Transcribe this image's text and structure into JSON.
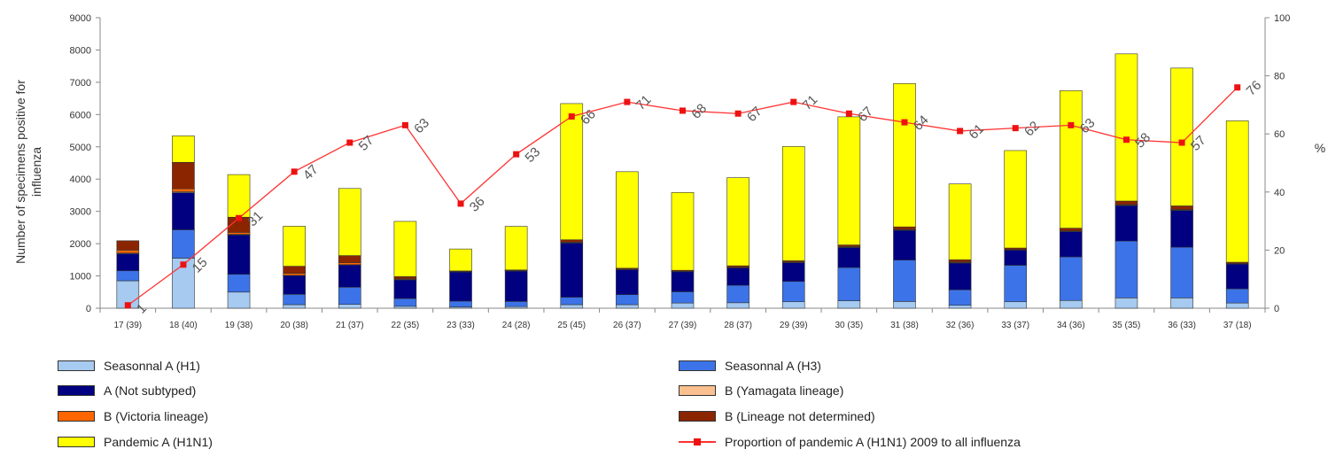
{
  "chart_data": {
    "type": "bar",
    "stacked": true,
    "title": "",
    "ylabel": "Number of specimens positive for influenza",
    "y2label": "%",
    "ylim": [
      0,
      9000
    ],
    "y2lim": [
      0,
      100
    ],
    "yticks": [
      0,
      1000,
      2000,
      3000,
      4000,
      5000,
      6000,
      7000,
      8000,
      9000
    ],
    "y2ticks": [
      0,
      20,
      40,
      60,
      80,
      100
    ],
    "grid": false,
    "legend_position": "bottom",
    "categories": [
      "17 (39)",
      "18 (40)",
      "19 (38)",
      "20 (38)",
      "21 (37)",
      "22 (35)",
      "23 (33)",
      "24 (28)",
      "25 (45)",
      "26 (37)",
      "27 (39)",
      "28 (37)",
      "29 (39)",
      "30 (35)",
      "31 (38)",
      "32 (36)",
      "33 (37)",
      "34 (36)",
      "35 (35)",
      "36 (33)",
      "37 (18)"
    ],
    "series": [
      {
        "name": "Seasonnal A (H1)",
        "color": "#a6caf0",
        "values": [
          850,
          1550,
          500,
          110,
          120,
          60,
          40,
          50,
          110,
          110,
          160,
          170,
          200,
          230,
          210,
          90,
          200,
          240,
          320,
          320,
          160
        ]
      },
      {
        "name": "Seasonnal A (H3)",
        "color": "#3c73e8",
        "values": [
          310,
          880,
          550,
          320,
          530,
          240,
          180,
          160,
          230,
          310,
          350,
          540,
          630,
          1030,
          1280,
          480,
          1130,
          1350,
          1760,
          1570,
          440
        ]
      },
      {
        "name": "A (Not subtyped)",
        "color": "#000080",
        "values": [
          530,
          1150,
          1220,
          580,
          690,
          580,
          900,
          940,
          1680,
          770,
          620,
          540,
          580,
          620,
          920,
          830,
          470,
          780,
          1100,
          1140,
          770
        ]
      },
      {
        "name": "B (Yamagata lineage)",
        "color": "#fac090",
        "values": [
          20,
          30,
          20,
          10,
          10,
          10,
          5,
          5,
          10,
          10,
          5,
          5,
          10,
          10,
          10,
          10,
          5,
          10,
          10,
          10,
          5
        ]
      },
      {
        "name": "B (Victoria lineage)",
        "color": "#ff6600",
        "values": [
          90,
          90,
          60,
          60,
          60,
          20,
          10,
          10,
          20,
          10,
          10,
          10,
          10,
          20,
          20,
          20,
          10,
          20,
          20,
          20,
          10
        ]
      },
      {
        "name": "B (Lineage not determined)",
        "color": "#8b2500",
        "values": [
          290,
          820,
          470,
          220,
          220,
          70,
          20,
          20,
          70,
          30,
          30,
          50,
          40,
          50,
          80,
          70,
          50,
          80,
          110,
          110,
          40
        ]
      },
      {
        "name": "Pandemic A (H1N1)",
        "color": "#ffff00",
        "values": [
          0,
          820,
          1320,
          1240,
          2080,
          1710,
          680,
          1350,
          4220,
          2990,
          2410,
          2730,
          3540,
          3970,
          4440,
          2350,
          3020,
          4260,
          4560,
          4270,
          4380
        ]
      }
    ],
    "line_series": {
      "name": "Proportion of pandemic A (H1N1) 2009 to all influenza",
      "color": "#ff3333",
      "axis": "right",
      "values": [
        1,
        15,
        31,
        47,
        57,
        63,
        36,
        53,
        66,
        71,
        68,
        67,
        71,
        67,
        64,
        61,
        62,
        63,
        58,
        57,
        76
      ]
    }
  }
}
